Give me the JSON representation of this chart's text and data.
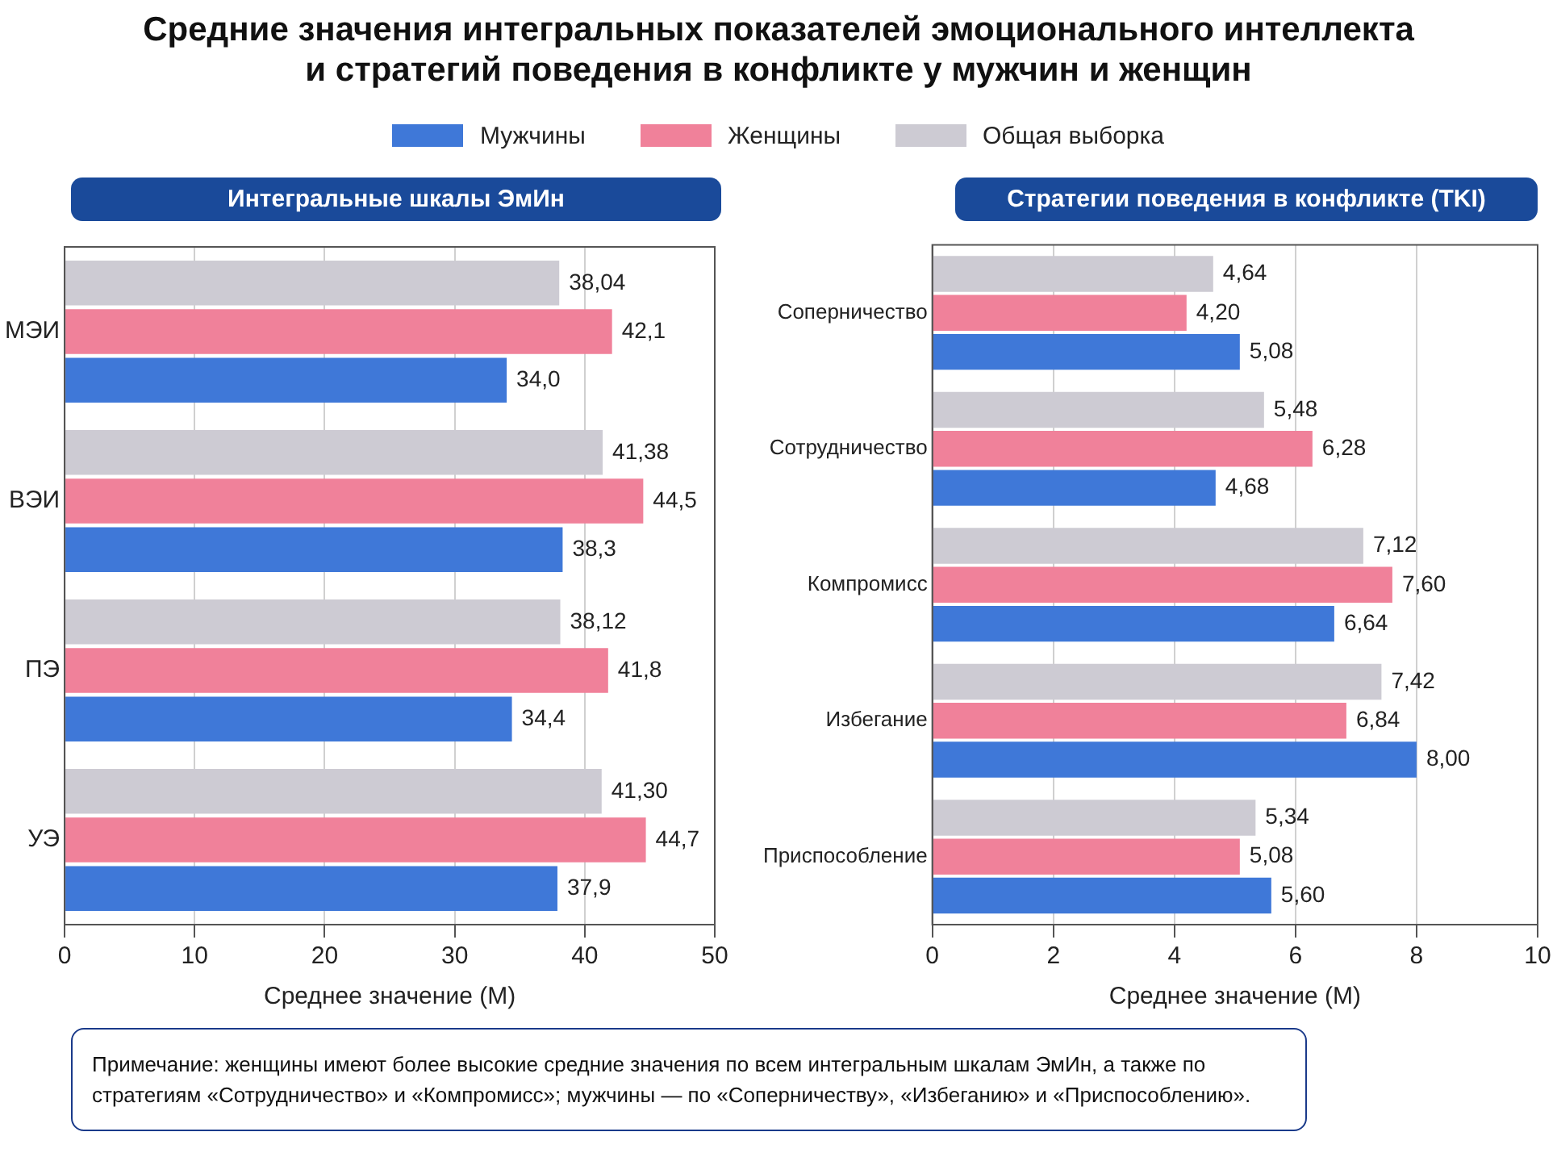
{
  "chart_data": [
    {
      "type": "bar",
      "orientation": "horizontal",
      "title": "Средние значения интегральных показателей эмоционального интеллекта\nи стратегий поведения в конфликте у мужчин и женщин",
      "subtitle": "Интегральные шкалы ЭмИн",
      "xlabel": "Среднее значение (M)",
      "categories": [
        "МЭИ",
        "ВЭИ",
        "ПЭ",
        "УЭ"
      ],
      "xlim": [
        0,
        50
      ],
      "xticks": [
        0,
        10,
        20,
        30,
        40,
        50
      ],
      "grid": "x",
      "legend": "top",
      "series": [
        {
          "name": "Мужчины",
          "color": "#3f78d8",
          "values": [
            34.0,
            38.3,
            34.4,
            37.9
          ],
          "value_labels": [
            "34,0",
            "38,3",
            "34,4",
            "37,9"
          ]
        },
        {
          "name": "Женщины",
          "color": "#f0819a",
          "values": [
            42.1,
            44.5,
            41.8,
            44.7
          ],
          "value_labels": [
            "42,1",
            "44,5",
            "41,8",
            "44,7"
          ]
        },
        {
          "name": "Общая выборка",
          "color": "#cdcbd3",
          "values": [
            38.04,
            41.38,
            38.12,
            41.3
          ],
          "value_labels": [
            "38,04",
            "41,38",
            "38,12",
            "41,30"
          ]
        }
      ]
    },
    {
      "type": "bar",
      "orientation": "horizontal",
      "subtitle": "Стратегии поведения в конфликте (TKI)",
      "xlabel": "Среднее значение (M)",
      "categories": [
        "Соперничество",
        "Сотрудничество",
        "Компромисс",
        "Избегание",
        "Приспособление"
      ],
      "xlim": [
        0,
        10
      ],
      "xticks": [
        0,
        2,
        4,
        6,
        8,
        10
      ],
      "grid": "x",
      "annotations": [
        "Примечание: женщины имеют более высокие средние значения по всем интегральным шкалам ЭмИн, а также по стратегиям «Сотрудничество» и «Компромисс»; мужчины — по «Соперничеству», «Избеганию» и «Приспособлению»."
      ],
      "series": [
        {
          "color": "#3f78d8",
          "values": [
            5.08,
            4.68,
            6.64,
            8.0,
            5.6
          ],
          "value_labels": [
            "5,08",
            "4,68",
            "6,64",
            "8,00",
            "5,60"
          ]
        },
        {
          "color": "#f0819a",
          "values": [
            4.2,
            6.28,
            7.6,
            6.84,
            5.08
          ],
          "value_labels": [
            "4,20",
            "6,28",
            "7,60",
            "6,84",
            "5,08"
          ]
        },
        {
          "color": "#cdcbd3",
          "values": [
            4.64,
            5.48,
            7.12,
            7.42,
            5.34
          ],
          "value_labels": [
            "4,64",
            "5,48",
            "7,12",
            "7,42",
            "5,34"
          ]
        }
      ]
    }
  ]
}
